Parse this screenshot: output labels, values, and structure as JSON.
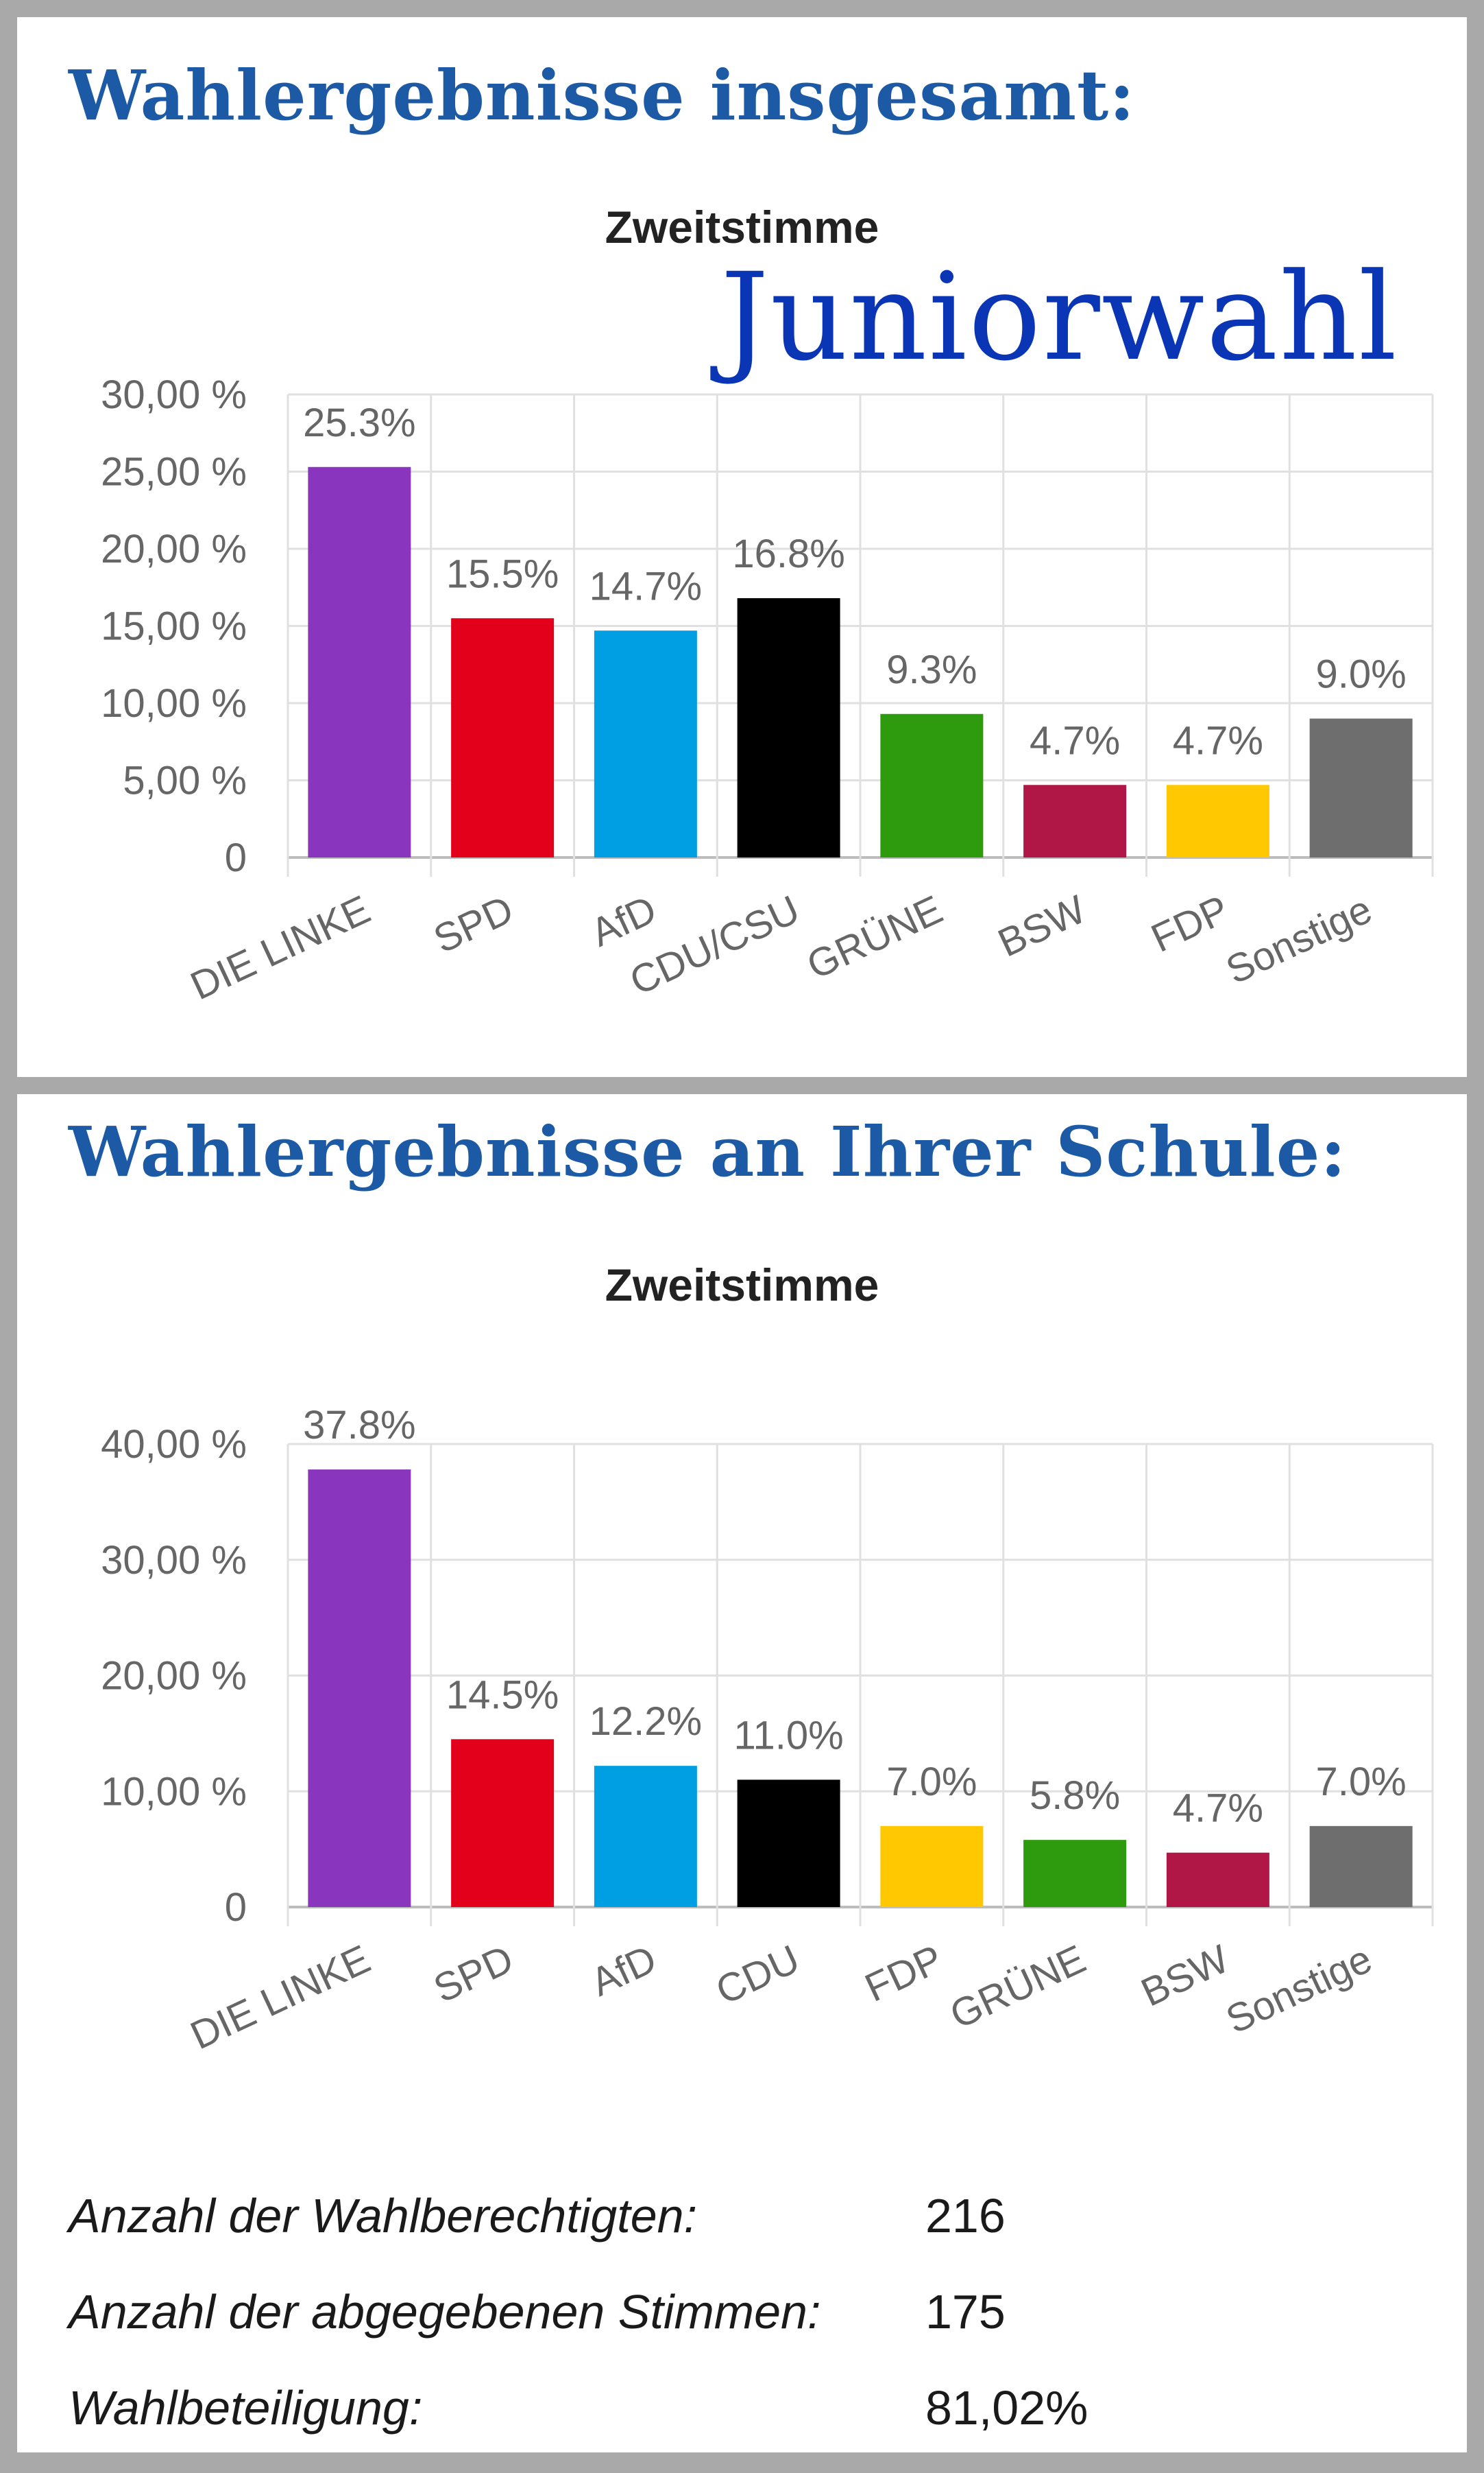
{
  "sections": [
    {
      "title": "Wahlergebnisse insgesamt:",
      "subtitle": "Zweitstimme",
      "overlay": "Juniorwahl"
    },
    {
      "title": "Wahlergebnisse an Ihrer Schule:",
      "subtitle": "Zweitstimme"
    }
  ],
  "chart_data": [
    {
      "type": "bar",
      "title": "Zweitstimme",
      "categories": [
        "DIE LINKE",
        "SPD",
        "AfD",
        "CDU/CSU",
        "GRÜNE",
        "BSW",
        "FDP",
        "Sonstige"
      ],
      "values": [
        25.3,
        15.5,
        14.7,
        16.8,
        9.3,
        4.7,
        4.7,
        9.0
      ],
      "data_labels": [
        "25.3%",
        "15.5%",
        "14.7%",
        "16.8%",
        "9.3%",
        "4.7%",
        "4.7%",
        "9.0%"
      ],
      "colors": [
        "#8a35bd",
        "#e3001b",
        "#009fe3",
        "#000000",
        "#2e9a0e",
        "#b01747",
        "#ffc800",
        "#6e6e6e"
      ],
      "yticks": [
        0,
        5,
        10,
        15,
        20,
        25,
        30
      ],
      "ytick_labels": [
        "0",
        "5,00 %",
        "10,00 %",
        "15,00 %",
        "20,00 %",
        "25,00 %",
        "30,00 %"
      ],
      "ylim": [
        0,
        30
      ],
      "grid": true,
      "legend": "none",
      "xlabel": "",
      "ylabel": ""
    },
    {
      "type": "bar",
      "title": "Zweitstimme",
      "categories": [
        "DIE LINKE",
        "SPD",
        "AfD",
        "CDU",
        "FDP",
        "GRÜNE",
        "BSW",
        "Sonstige"
      ],
      "values": [
        37.8,
        14.5,
        12.2,
        11.0,
        7.0,
        5.8,
        4.7,
        7.0
      ],
      "data_labels": [
        "37.8%",
        "14.5%",
        "12.2%",
        "11.0%",
        "7.0%",
        "5.8%",
        "4.7%",
        "7.0%"
      ],
      "colors": [
        "#8a35bd",
        "#e3001b",
        "#009fe3",
        "#000000",
        "#ffc800",
        "#2e9a0e",
        "#b01747",
        "#6e6e6e"
      ],
      "yticks": [
        0,
        10,
        20,
        30,
        40
      ],
      "ytick_labels": [
        "0",
        "10,00 %",
        "20,00 %",
        "30,00 %",
        "40,00 %"
      ],
      "ylim": [
        0,
        40
      ],
      "grid": true,
      "legend": "none",
      "xlabel": "",
      "ylabel": ""
    }
  ],
  "stats": [
    {
      "label": "Anzahl der Wahlberechtigten:",
      "value": "216"
    },
    {
      "label": "Anzahl der abgegebenen Stimmen:",
      "value": "175"
    },
    {
      "label": "Wahlbeteiligung:",
      "value": "81,02%"
    }
  ]
}
